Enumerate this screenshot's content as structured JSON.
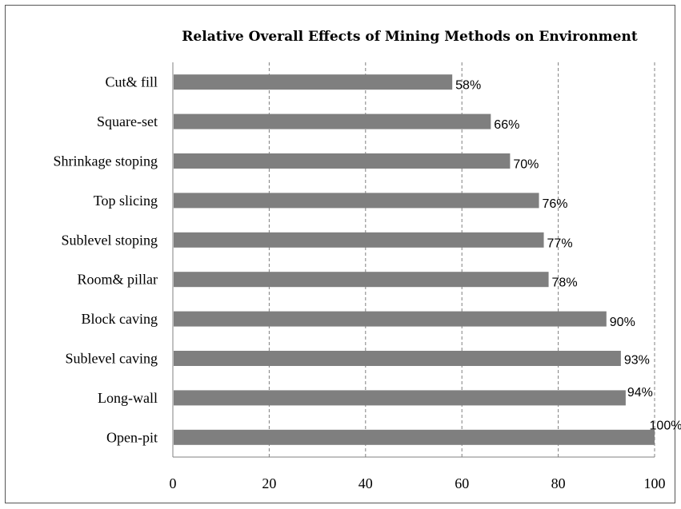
{
  "chart_data": {
    "type": "bar",
    "orientation": "horizontal",
    "title": "Relative Overall Effects of Mining Methods on Environment",
    "categories": [
      "Cut& fill",
      "Square-set",
      "Shrinkage stoping",
      "Top slicing",
      "Sublevel stoping",
      "Room& pillar",
      "Block caving",
      "Sublevel caving",
      "Long-wall",
      "Open-pit"
    ],
    "values": [
      58,
      66,
      70,
      76,
      77,
      78,
      90,
      93,
      94,
      100
    ],
    "data_labels": [
      "58%",
      "66%",
      "70%",
      "76%",
      "77%",
      "78%",
      "90%",
      "93%",
      "94%",
      "100%"
    ],
    "xlim": [
      0,
      100
    ],
    "x_ticks": [
      "0",
      "20",
      "40",
      "60",
      "80",
      "100"
    ],
    "grid": "vertical dashed",
    "bar_color": "#7f7f7f"
  }
}
